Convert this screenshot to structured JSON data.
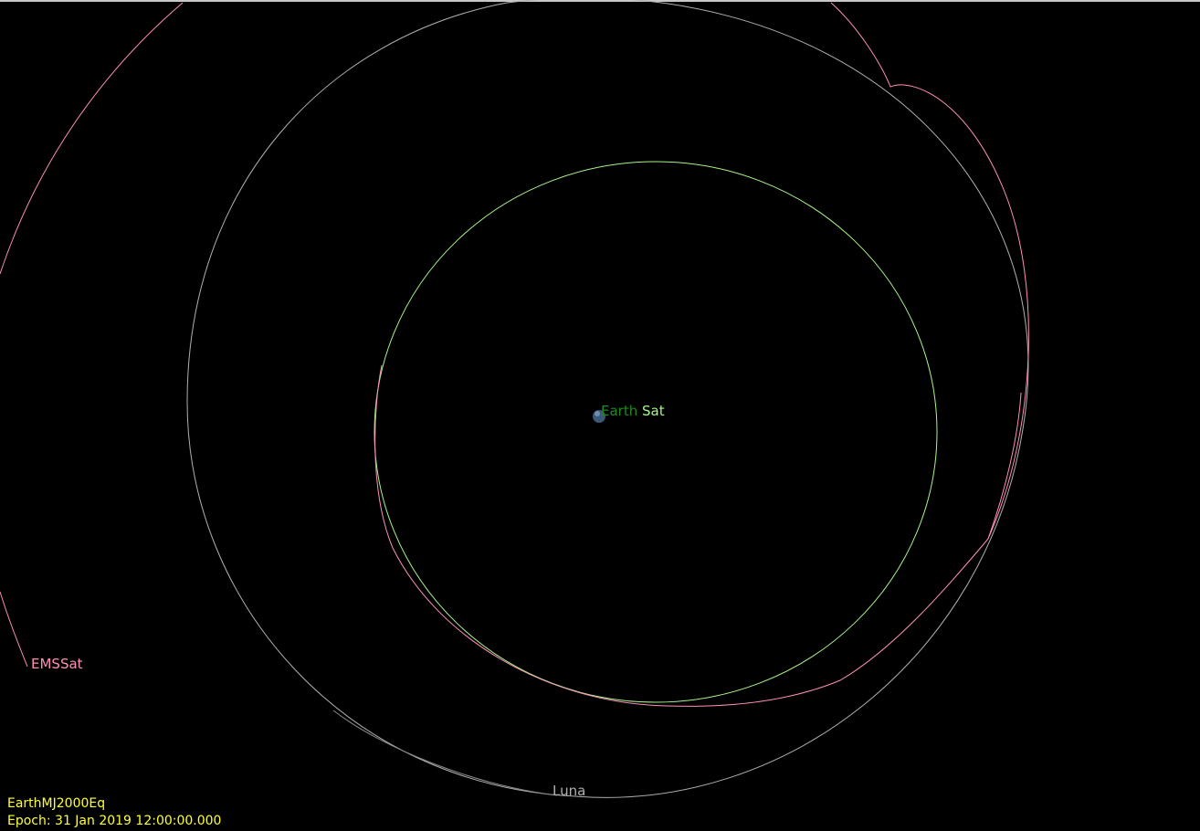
{
  "view": {
    "background": "#000000",
    "colors": {
      "earth_label": "#1f8a1f",
      "sat": "#a8f58a",
      "ems_sat": "#ff8fb8",
      "luna": "#b0b0b0",
      "info_text": "#ffff33",
      "earth_body": "#3c5a78"
    }
  },
  "labels": {
    "earth": "Earth",
    "sat": "Sat",
    "ems_sat": "EMSSat",
    "luna": "Luna"
  },
  "info": {
    "coordinate_system": "EarthMJ2000Eq",
    "epoch": "Epoch: 31 Jan 2019 12:00:00.000"
  }
}
